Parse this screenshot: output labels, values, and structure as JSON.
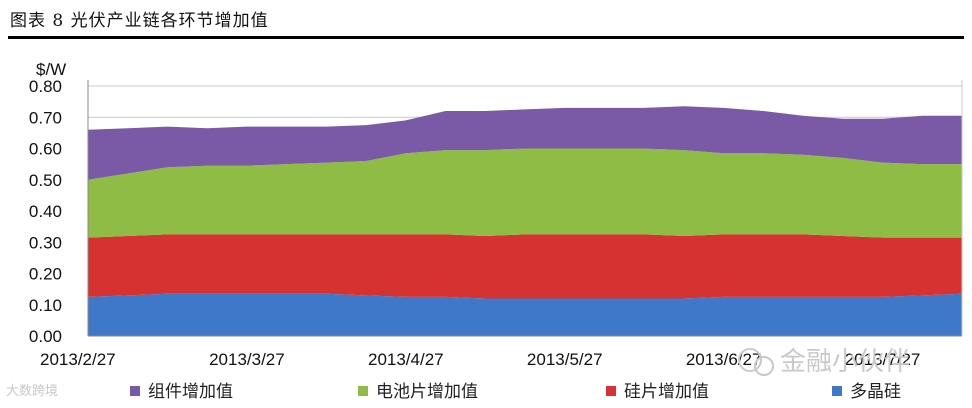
{
  "figure_title": "图表 8 光伏产业链各环节增加值",
  "watermarks": [
    "金融小伙伴",
    "大数跨境"
  ],
  "colors": {
    "module": "#7a5aa6",
    "cell": "#8fbc45",
    "wafer": "#d63232",
    "polysilicon": "#3f78c8",
    "grid": "#c8c8c8",
    "axis": "#888888"
  },
  "chart_data": {
    "type": "area",
    "stacked": true,
    "ylabel": "$/W",
    "ylim": [
      0,
      0.8
    ],
    "yticks": [
      "0.00",
      "0.10",
      "0.20",
      "0.30",
      "0.40",
      "0.50",
      "0.60",
      "0.70",
      "0.80"
    ],
    "xtick_labels": [
      "2013/2/27",
      "2013/3/27",
      "2013/4/27",
      "2013/5/27",
      "2013/6/27",
      "2013/7/27"
    ],
    "grid": "horizontal",
    "legend_position": "bottom",
    "x": [
      "2013/2/27",
      "2013/3/6",
      "2013/3/13",
      "2013/3/20",
      "2013/3/27",
      "2013/4/3",
      "2013/4/10",
      "2013/4/17",
      "2013/4/27",
      "2013/5/4",
      "2013/5/11",
      "2013/5/18",
      "2013/5/27",
      "2013/6/3",
      "2013/6/10",
      "2013/6/17",
      "2013/6/27",
      "2013/7/4",
      "2013/7/11",
      "2013/7/18",
      "2013/7/27",
      "2013/8/3",
      "2013/8/10"
    ],
    "series": [
      {
        "name": "多晶硅",
        "color_key": "polysilicon",
        "values": [
          0.125,
          0.13,
          0.135,
          0.135,
          0.135,
          0.135,
          0.135,
          0.13,
          0.125,
          0.125,
          0.12,
          0.12,
          0.12,
          0.12,
          0.12,
          0.12,
          0.125,
          0.125,
          0.125,
          0.125,
          0.125,
          0.13,
          0.135
        ]
      },
      {
        "name": "硅片增加值",
        "color_key": "wafer",
        "values": [
          0.19,
          0.19,
          0.19,
          0.19,
          0.19,
          0.19,
          0.19,
          0.195,
          0.2,
          0.2,
          0.2,
          0.205,
          0.205,
          0.205,
          0.205,
          0.2,
          0.2,
          0.2,
          0.2,
          0.195,
          0.19,
          0.185,
          0.18
        ]
      },
      {
        "name": "电池片增加值",
        "color_key": "cell",
        "values": [
          0.185,
          0.2,
          0.215,
          0.22,
          0.22,
          0.225,
          0.23,
          0.235,
          0.26,
          0.27,
          0.275,
          0.275,
          0.275,
          0.275,
          0.275,
          0.275,
          0.26,
          0.26,
          0.255,
          0.25,
          0.24,
          0.235,
          0.235
        ]
      },
      {
        "name": "组件增加值",
        "color_key": "module",
        "values": [
          0.16,
          0.145,
          0.13,
          0.12,
          0.125,
          0.12,
          0.115,
          0.115,
          0.105,
          0.125,
          0.125,
          0.125,
          0.13,
          0.13,
          0.13,
          0.14,
          0.145,
          0.135,
          0.125,
          0.125,
          0.14,
          0.155,
          0.155
        ]
      }
    ],
    "legend": [
      {
        "name": "组件增加值",
        "color_key": "module"
      },
      {
        "name": "电池片增加值",
        "color_key": "cell"
      },
      {
        "name": "硅片增加值",
        "color_key": "wafer"
      },
      {
        "name": "多晶硅",
        "color_key": "polysilicon"
      }
    ]
  }
}
